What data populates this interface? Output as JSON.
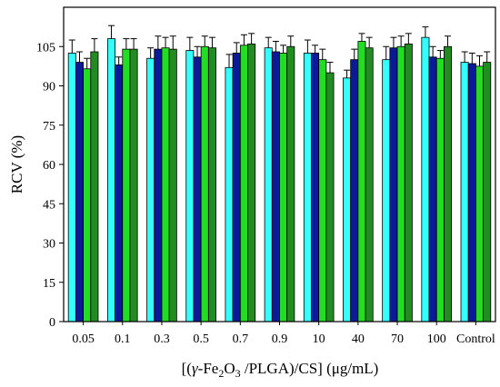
{
  "chart_data": {
    "type": "bar",
    "categories": [
      "0.05",
      "0.1",
      "0.3",
      "0.5",
      "0.7",
      "0.9",
      "10",
      "40",
      "70",
      "100",
      "Control"
    ],
    "series": [
      {
        "color": "#33ffff",
        "values": [
          102.5,
          108,
          100.5,
          103.5,
          97,
          104.5,
          102.5,
          93,
          100,
          108.5,
          99
        ]
      },
      {
        "color": "#0a1a99",
        "values": [
          99,
          98,
          104,
          101,
          102.5,
          103,
          102.5,
          100,
          104.5,
          101,
          98.5
        ]
      },
      {
        "color": "#22dd22",
        "values": [
          96.5,
          104,
          104.5,
          105,
          105.5,
          102.5,
          100,
          107,
          105,
          100.5,
          97.5
        ]
      },
      {
        "color": "#228b22",
        "values": [
          103,
          104,
          104,
          104.5,
          106,
          105,
          95,
          104.5,
          106,
          105,
          99
        ]
      }
    ],
    "errors": [
      [
        5,
        5,
        4,
        5,
        5,
        4,
        5,
        3,
        5,
        4,
        4
      ],
      [
        4,
        3,
        5,
        4,
        4,
        4,
        3,
        4,
        4,
        4,
        4
      ],
      [
        4,
        4,
        4,
        4,
        4,
        3,
        4,
        3,
        4,
        3,
        4
      ],
      [
        5,
        4,
        5,
        4,
        4,
        4,
        4,
        4,
        4,
        4,
        4
      ]
    ],
    "xlabel_parts": [
      "[(",
      "γ",
      "-Fe",
      "2",
      "O",
      "3",
      " /PLGA)/CS] (μg/mL)"
    ],
    "ylabel": "RCV (%)",
    "yticks": [
      0,
      15,
      30,
      45,
      60,
      75,
      90,
      105
    ],
    "ylim": [
      0,
      120
    ],
    "grid": false,
    "legend": "none"
  }
}
